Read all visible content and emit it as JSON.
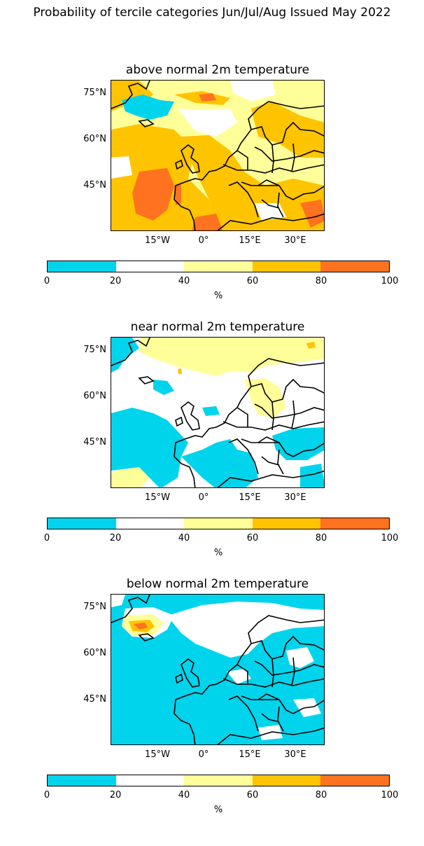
{
  "suptitle": "Probability of tercile categories Jun/Jul/Aug Issued May 2022",
  "colors": {
    "cyan": "#00d4ec",
    "white": "#ffffff",
    "lightyellow": "#ffff99",
    "gold": "#ffc400",
    "orange": "#ff7220"
  },
  "lat_ticks": [
    "75°N",
    "60°N",
    "45°N"
  ],
  "lon_ticks": [
    "15°W",
    "0°",
    "15°E",
    "30°E"
  ],
  "colorbar": {
    "ticks": [
      "0",
      "20",
      "40",
      "60",
      "80",
      "100"
    ],
    "unit": "%",
    "bins": [
      "cyan",
      "white",
      "lightyellow",
      "gold",
      "orange"
    ]
  },
  "panels": [
    {
      "title": "above normal 2m temperature"
    },
    {
      "title": "near normal 2m temperature"
    },
    {
      "title": "below normal 2m temperature"
    }
  ]
}
